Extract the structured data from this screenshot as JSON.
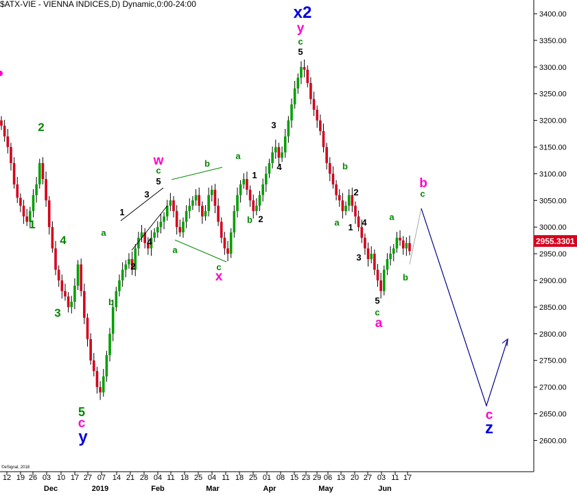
{
  "header": {
    "title": "$ATX-VIE - VIENNA INDICES,D) Dynamic,0:00-24:00",
    "copyright": "©eSignal, 2018"
  },
  "price_tag": {
    "value": "2955.3301",
    "color": "#d6001c"
  },
  "colors": {
    "up": "#00a000",
    "down": "#d6001c",
    "wick": "#000000",
    "green": "#008800",
    "black": "#000000",
    "magenta": "#ff00cc",
    "blue": "#0000dd",
    "navy": "#00008b",
    "gray": "#a9a9a9"
  },
  "chart_data": {
    "type": "candlestick",
    "title": "$ATX-VIE - VIENNA INDICES,D) Dynamic,0:00-24:00",
    "y_range": [
      2590,
      3430
    ],
    "y_ticks": [
      "3400.00",
      "3350.00",
      "3300.00",
      "3250.00",
      "3200.00",
      "3150.00",
      "3100.00",
      "3050.00",
      "3000.00",
      "2950.00",
      "2900.00",
      "2850.00",
      "2800.00",
      "2750.00",
      "2700.00",
      "2650.00",
      "2600.00"
    ],
    "x_day_labels": [
      "12",
      "19",
      "26",
      "03",
      "10",
      "17",
      "27",
      "07",
      "14",
      "21",
      "28",
      "04",
      "11",
      "18",
      "25",
      "04",
      "11",
      "18",
      "25",
      "01",
      "08",
      "15",
      "23",
      "29",
      "06",
      "13",
      "20",
      "27",
      "03",
      "11",
      "17"
    ],
    "x_month_labels": [
      "Dec",
      "2019",
      "Feb",
      "Mar",
      "Apr",
      "May",
      "Jun"
    ],
    "ohlc_close": [
      3190,
      3170,
      3150,
      3120,
      3080,
      3055,
      3040,
      3020,
      3010,
      3030,
      3060,
      3080,
      3120,
      3090,
      3050,
      3000,
      2960,
      2920,
      2900,
      2880,
      2870,
      2850,
      2860,
      2890,
      2930,
      2880,
      2830,
      2790,
      2750,
      2730,
      2700,
      2690,
      2720,
      2760,
      2800,
      2850,
      2880,
      2900,
      2920,
      2930,
      2940,
      2920,
      2960,
      2980,
      2990,
      2970,
      2960,
      2980,
      2990,
      3000,
      3010,
      3020,
      3040,
      3050,
      3030,
      3000,
      2990,
      3010,
      3030,
      3040,
      3050,
      3060,
      3040,
      3020,
      3030,
      3060,
      3070,
      3040,
      3010,
      2980,
      2960,
      2950,
      2990,
      3030,
      3060,
      3080,
      3090,
      3070,
      3050,
      3030,
      3040,
      3060,
      3080,
      3100,
      3120,
      3140,
      3150,
      3130,
      3140,
      3170,
      3200,
      3230,
      3260,
      3280,
      3300,
      3295,
      3270,
      3240,
      3220,
      3200,
      3180,
      3150,
      3120,
      3100,
      3080,
      3060,
      3050,
      3030,
      3040,
      3060,
      3040,
      3020,
      3000,
      2980,
      2960,
      2940,
      2950,
      2920,
      2900,
      2880,
      2920,
      2940,
      2950,
      2960,
      2980,
      2975,
      2960,
      2970,
      2955
    ],
    "projection": {
      "gray_segment": {
        "from_price": 2930,
        "to_price": 3035
      },
      "blue_path_prices": [
        3035,
        2665,
        2790
      ]
    },
    "wave_labels": [
      {
        "text": "2",
        "color": "green"
      },
      {
        "text": "1",
        "color": "green"
      },
      {
        "text": "4",
        "color": "green"
      },
      {
        "text": "3",
        "color": "green"
      },
      {
        "text": "5",
        "color": "green"
      },
      {
        "text": "c",
        "color": "magenta"
      },
      {
        "text": "y",
        "color": "blue"
      },
      {
        "text": "a",
        "color": "green"
      },
      {
        "text": "b",
        "color": "green"
      },
      {
        "text": "1",
        "color": "black"
      },
      {
        "text": "2",
        "color": "black"
      },
      {
        "text": "3",
        "color": "black"
      },
      {
        "text": "4",
        "color": "black"
      },
      {
        "text": "5",
        "color": "black"
      },
      {
        "text": "c",
        "color": "green"
      },
      {
        "text": "w",
        "color": "magenta"
      },
      {
        "text": "a",
        "color": "green"
      },
      {
        "text": "b",
        "color": "green"
      },
      {
        "text": "c",
        "color": "green"
      },
      {
        "text": "x",
        "color": "magenta"
      },
      {
        "text": "a",
        "color": "green"
      },
      {
        "text": "b",
        "color": "green"
      },
      {
        "text": "1",
        "color": "black"
      },
      {
        "text": "2",
        "color": "black"
      },
      {
        "text": "3",
        "color": "black"
      },
      {
        "text": "4",
        "color": "black"
      },
      {
        "text": "5",
        "color": "black"
      },
      {
        "text": "c",
        "color": "green"
      },
      {
        "text": "y",
        "color": "magenta"
      },
      {
        "text": "x2",
        "color": "blue"
      },
      {
        "text": "b",
        "color": "green"
      },
      {
        "text": "a",
        "color": "green"
      },
      {
        "text": "2",
        "color": "black"
      },
      {
        "text": "1",
        "color": "black"
      },
      {
        "text": "4",
        "color": "black"
      },
      {
        "text": "3",
        "color": "black"
      },
      {
        "text": "5",
        "color": "black"
      },
      {
        "text": "c",
        "color": "green"
      },
      {
        "text": "a",
        "color": "magenta"
      },
      {
        "text": "a",
        "color": "green"
      },
      {
        "text": "b",
        "color": "green"
      },
      {
        "text": "b",
        "color": "magenta"
      },
      {
        "text": "c",
        "color": "green"
      },
      {
        "text": "c",
        "color": "magenta"
      },
      {
        "text": "z",
        "color": "blue"
      }
    ]
  }
}
